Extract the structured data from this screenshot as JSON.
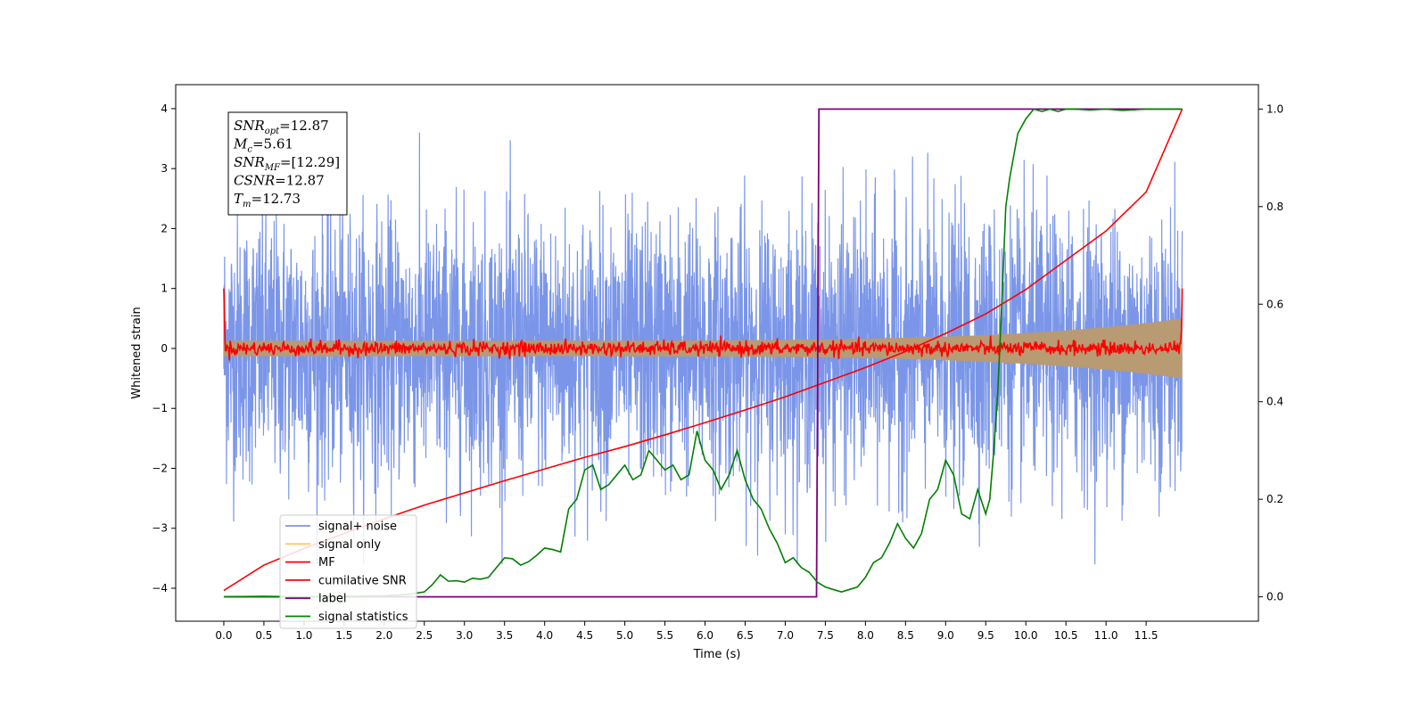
{
  "chart_data": {
    "type": "line",
    "xlabel": "Time (s)",
    "ylabel": "Whitened strain",
    "xlim": [
      -0.6,
      12.9
    ],
    "ylim_left": [
      -4.55,
      4.4
    ],
    "ylim_right": [
      -0.05,
      1.05
    ],
    "x_ticks": [
      "0.0",
      "0.5",
      "1.0",
      "1.5",
      "2.0",
      "2.5",
      "3.0",
      "3.5",
      "4.0",
      "4.5",
      "5.0",
      "5.5",
      "6.0",
      "6.5",
      "7.0",
      "7.5",
      "8.0",
      "8.5",
      "9.0",
      "9.5",
      "10.0",
      "10.5",
      "11.0",
      "11.5"
    ],
    "y_ticks_left": [
      "4",
      "3",
      "2",
      "1",
      "0",
      "−1",
      "−2",
      "−3",
      "−4"
    ],
    "y_ticks_right": [
      "1.0",
      "0.8",
      "0.6",
      "0.4",
      "0.2",
      "0.0"
    ],
    "legend_position": "lower-left",
    "legend": [
      "signal+ noise",
      "signal only",
      "MF",
      "cumilative SNR",
      "label",
      "signal statistics"
    ],
    "colors": {
      "noise": "#7b96e8",
      "signal": "#fcc96a",
      "signal_band": "#b89a73",
      "mf": "#ff0000",
      "csnr": "#ff0000",
      "label": "#800080",
      "stats": "#008000"
    },
    "stats_box": [
      {
        "base": "SNR",
        "sub": "opt",
        "value": "=12.87"
      },
      {
        "base": "M",
        "sub": "c",
        "value": "=5.61"
      },
      {
        "base": "SNR",
        "sub": "MF",
        "value": "=[12.29]"
      },
      {
        "base": "CSNR",
        "sub": "",
        "value": "=12.87"
      },
      {
        "base": "T",
        "sub": "m",
        "value": "=12.73"
      }
    ],
    "series": [
      {
        "name": "label",
        "x": [
          0.0,
          7.39,
          7.42,
          11.95
        ],
        "y": [
          0.0,
          0.0,
          1.0,
          1.0
        ]
      },
      {
        "name": "cumilative SNR",
        "x": [
          0.0,
          0.5,
          1.0,
          1.5,
          2.0,
          2.5,
          3.0,
          3.5,
          4.0,
          4.5,
          5.0,
          5.5,
          6.0,
          6.5,
          7.0,
          7.5,
          8.0,
          8.5,
          9.0,
          9.5,
          10.0,
          10.5,
          11.0,
          11.5,
          11.95
        ],
        "y": [
          0.013,
          0.065,
          0.099,
          0.13,
          0.16,
          0.188,
          0.213,
          0.238,
          0.262,
          0.286,
          0.308,
          0.332,
          0.357,
          0.383,
          0.41,
          0.44,
          0.47,
          0.503,
          0.54,
          0.58,
          0.63,
          0.69,
          0.75,
          0.83,
          1.0
        ]
      },
      {
        "name": "signal statistics",
        "x": [
          0.0,
          0.5,
          1.0,
          1.5,
          2.0,
          2.3,
          2.5,
          2.6,
          2.7,
          2.8,
          2.9,
          3.0,
          3.1,
          3.2,
          3.3,
          3.4,
          3.5,
          3.6,
          3.7,
          3.8,
          3.9,
          4.0,
          4.1,
          4.2,
          4.3,
          4.4,
          4.5,
          4.6,
          4.7,
          4.8,
          4.9,
          5.0,
          5.1,
          5.2,
          5.3,
          5.4,
          5.5,
          5.6,
          5.7,
          5.8,
          5.9,
          6.0,
          6.1,
          6.2,
          6.3,
          6.4,
          6.5,
          6.6,
          6.7,
          6.8,
          6.9,
          7.0,
          7.1,
          7.2,
          7.3,
          7.4,
          7.5,
          7.6,
          7.7,
          7.8,
          7.9,
          8.0,
          8.1,
          8.2,
          8.3,
          8.4,
          8.5,
          8.6,
          8.7,
          8.8,
          8.9,
          9.0,
          9.1,
          9.2,
          9.3,
          9.4,
          9.5,
          9.55,
          9.6,
          9.65,
          9.7,
          9.75,
          9.8,
          9.9,
          10.0,
          10.1,
          10.2,
          10.3,
          10.4,
          10.5,
          10.6,
          10.8,
          11.0,
          11.2,
          11.5,
          11.95
        ],
        "y": [
          0.0,
          0.001,
          0.0,
          0.001,
          0.002,
          0.005,
          0.01,
          0.025,
          0.045,
          0.032,
          0.033,
          0.03,
          0.038,
          0.036,
          0.04,
          0.06,
          0.08,
          0.078,
          0.065,
          0.072,
          0.085,
          0.1,
          0.097,
          0.092,
          0.18,
          0.2,
          0.26,
          0.27,
          0.22,
          0.23,
          0.25,
          0.27,
          0.24,
          0.25,
          0.3,
          0.28,
          0.26,
          0.27,
          0.24,
          0.25,
          0.34,
          0.28,
          0.26,
          0.22,
          0.25,
          0.3,
          0.24,
          0.2,
          0.18,
          0.14,
          0.11,
          0.07,
          0.08,
          0.06,
          0.05,
          0.03,
          0.02,
          0.015,
          0.01,
          0.015,
          0.02,
          0.04,
          0.07,
          0.08,
          0.11,
          0.15,
          0.12,
          0.1,
          0.13,
          0.2,
          0.22,
          0.28,
          0.25,
          0.17,
          0.16,
          0.22,
          0.17,
          0.2,
          0.3,
          0.42,
          0.6,
          0.8,
          0.86,
          0.95,
          0.98,
          1.0,
          0.995,
          1.0,
          0.995,
          1.0,
          1.0,
          0.998,
          1.0,
          0.997,
          1.0,
          1.0
        ]
      }
    ]
  }
}
